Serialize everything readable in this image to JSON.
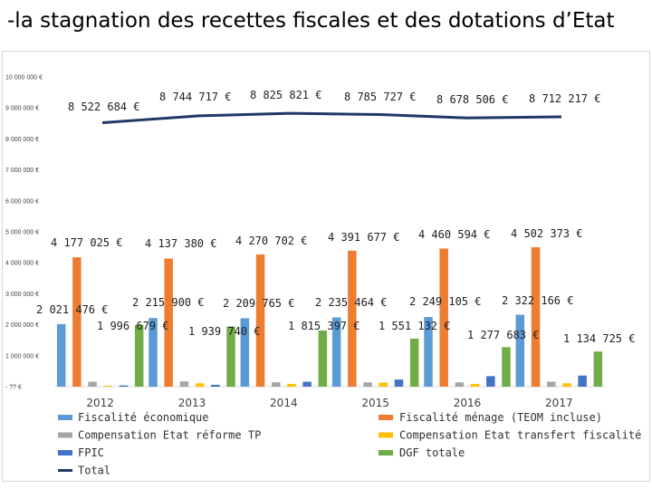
{
  "title": "-la stagnation des recettes fiscales et des dotations d’Etat",
  "chart_data": {
    "type": "bar",
    "combo_line_series": "Total",
    "categories": [
      "2012",
      "2013",
      "2014",
      "2015",
      "2016",
      "2017"
    ],
    "ylim": [
      0,
      10000000
    ],
    "yticks": [
      {
        "value": 0,
        "label": "- ?? €"
      },
      {
        "value": 1000000,
        "label": "1 000 000 €"
      },
      {
        "value": 2000000,
        "label": "2 000 000 €"
      },
      {
        "value": 3000000,
        "label": "3 000 000 €"
      },
      {
        "value": 4000000,
        "label": "4 000 000 €"
      },
      {
        "value": 5000000,
        "label": "5 000 000 €"
      },
      {
        "value": 6000000,
        "label": "6 000 000 €"
      },
      {
        "value": 7000000,
        "label": "7 000 000 €"
      },
      {
        "value": 8000000,
        "label": "8 000 000 €"
      },
      {
        "value": 9000000,
        "label": "9 000 000 €"
      },
      {
        "value": 10000000,
        "label": "10 000 000 €"
      }
    ],
    "series": [
      {
        "name": "Fiscalité économique",
        "kind": "bar",
        "color": "#5B9BD5",
        "values": [
          2021476,
          2215900,
          2209765,
          2235464,
          2249105,
          2322166
        ],
        "labels": [
          "2 021 476 €",
          "2 215 900 €",
          "2 209 765 €",
          "2 235 464 €",
          "2 249 105 €",
          "2 322 166 €"
        ]
      },
      {
        "name": "Fiscalité ménage (TEOM incluse)",
        "kind": "bar",
        "color": "#ED7D31",
        "values": [
          4177025,
          4137380,
          4270702,
          4391677,
          4460594,
          4502373
        ],
        "labels": [
          "4 177 025 €",
          "4 137 380 €",
          "4 270 702 €",
          "4 391 677 €",
          "4 460 594 €",
          "4 502 373 €"
        ]
      },
      {
        "name": "Compensation Etat réforme TP",
        "kind": "bar",
        "color": "#A5A5A5",
        "values": [
          160000,
          170000,
          140000,
          140000,
          140000,
          160000
        ],
        "labels": []
      },
      {
        "name": "Compensation Etat transfert fiscalité",
        "kind": "bar",
        "color": "#FFC000",
        "values": [
          30000,
          110000,
          90000,
          130000,
          90000,
          110000
        ],
        "labels": []
      },
      {
        "name": "FPIC",
        "kind": "bar",
        "color": "#4472C4",
        "values": [
          40000,
          60000,
          160000,
          230000,
          340000,
          360000
        ],
        "labels": []
      },
      {
        "name": "DGF totale",
        "kind": "bar",
        "color": "#70AD47",
        "values": [
          1996679,
          1939740,
          1815397,
          1551132,
          1277683,
          1134725
        ],
        "labels": [
          "1 996 679 €",
          "1 939 740 €",
          "1 815 397 €",
          "1 551 132 €",
          "1 277 683 €",
          "1 134 725 €"
        ]
      },
      {
        "name": "Total",
        "kind": "line",
        "color": "#203864",
        "values": [
          8522684,
          8744717,
          8825821,
          8785727,
          8678506,
          8712217
        ],
        "labels": [
          "8 522 684 €",
          "8 744 717 €",
          "8 825 821 €",
          "8 785 727 €",
          "8 678 506 €",
          "8 712 217 €"
        ]
      }
    ],
    "legend": {
      "placement": "bottom",
      "left": [
        "Fiscalité économique",
        "Compensation Etat réforme TP",
        "FPIC",
        "Total"
      ],
      "right": [
        "Fiscalité ménage (TEOM incluse)",
        "Compensation Etat transfert fiscalité",
        "DGF totale"
      ]
    }
  }
}
